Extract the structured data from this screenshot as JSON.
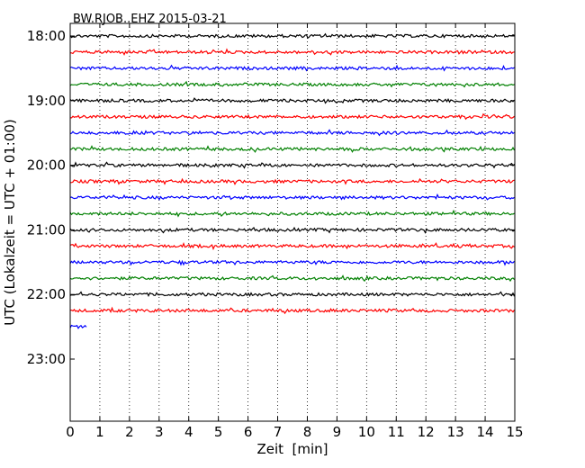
{
  "chart_data": {
    "type": "line",
    "title": "BW.RJOB..EHZ 2015-03-21",
    "xlabel": "Zeit  [min]",
    "ylabel": "UTC (Lokalzeit = UTC + 01:00)",
    "xlim": [
      0,
      15
    ],
    "x_ticks": [
      0,
      1,
      2,
      3,
      4,
      5,
      6,
      7,
      8,
      9,
      10,
      11,
      12,
      13,
      14,
      15
    ],
    "x_tick_labels": [
      "0",
      "1",
      "2",
      "3",
      "4",
      "5",
      "6",
      "7",
      "8",
      "9",
      "10",
      "11",
      "12",
      "13",
      "14",
      "15"
    ],
    "y_tick_labels": [
      "18:00",
      "19:00",
      "20:00",
      "21:00",
      "22:00",
      "23:00"
    ],
    "vertical_grid": "dotted",
    "trace_colors": [
      "#000000",
      "#ff0000",
      "#0000ff",
      "#008000"
    ],
    "traces": [
      {
        "start": "18:00",
        "x_end": 15
      },
      {
        "start": "18:15",
        "x_end": 15
      },
      {
        "start": "18:30",
        "x_end": 15
      },
      {
        "start": "18:45",
        "x_end": 15
      },
      {
        "start": "19:00",
        "x_end": 15
      },
      {
        "start": "19:15",
        "x_end": 15
      },
      {
        "start": "19:30",
        "x_end": 15
      },
      {
        "start": "19:45",
        "x_end": 15
      },
      {
        "start": "20:00",
        "x_end": 15
      },
      {
        "start": "20:15",
        "x_end": 15
      },
      {
        "start": "20:30",
        "x_end": 15
      },
      {
        "start": "20:45",
        "x_end": 15
      },
      {
        "start": "21:00",
        "x_end": 15
      },
      {
        "start": "21:15",
        "x_end": 15
      },
      {
        "start": "21:30",
        "x_end": 15
      },
      {
        "start": "21:45",
        "x_end": 15
      },
      {
        "start": "22:00",
        "x_end": 15
      },
      {
        "start": "22:15",
        "x_end": 15
      },
      {
        "start": "22:30",
        "x_end": 0.55
      }
    ]
  }
}
